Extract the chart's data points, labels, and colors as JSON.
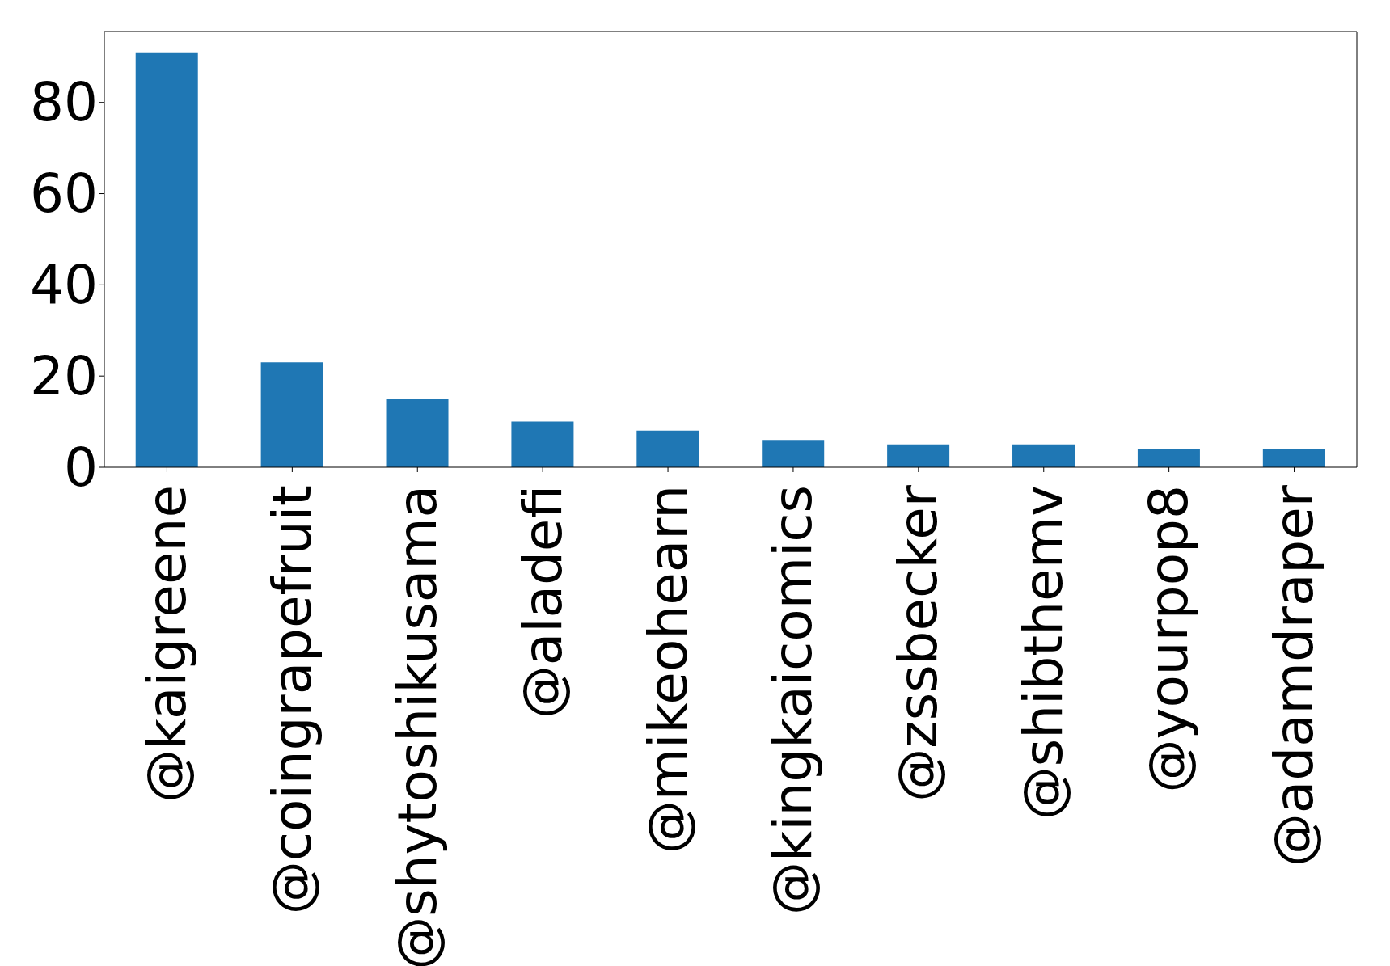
{
  "chart_data": {
    "type": "bar",
    "categories": [
      "@kaigreene",
      "@coingrapefruit",
      "@shytoshikusama",
      "@aladefi",
      "@mikeohearn",
      "@kingkaicomics",
      "@zssbecker",
      "@shibthemv",
      "@yourpop8",
      "@adamdraper"
    ],
    "values": [
      91,
      23,
      15,
      10,
      8,
      6,
      5,
      5,
      4,
      4
    ],
    "color": "#1f77b4",
    "ylim": [
      0,
      95.55
    ],
    "yticks": [
      0,
      20,
      40,
      60,
      80
    ]
  }
}
